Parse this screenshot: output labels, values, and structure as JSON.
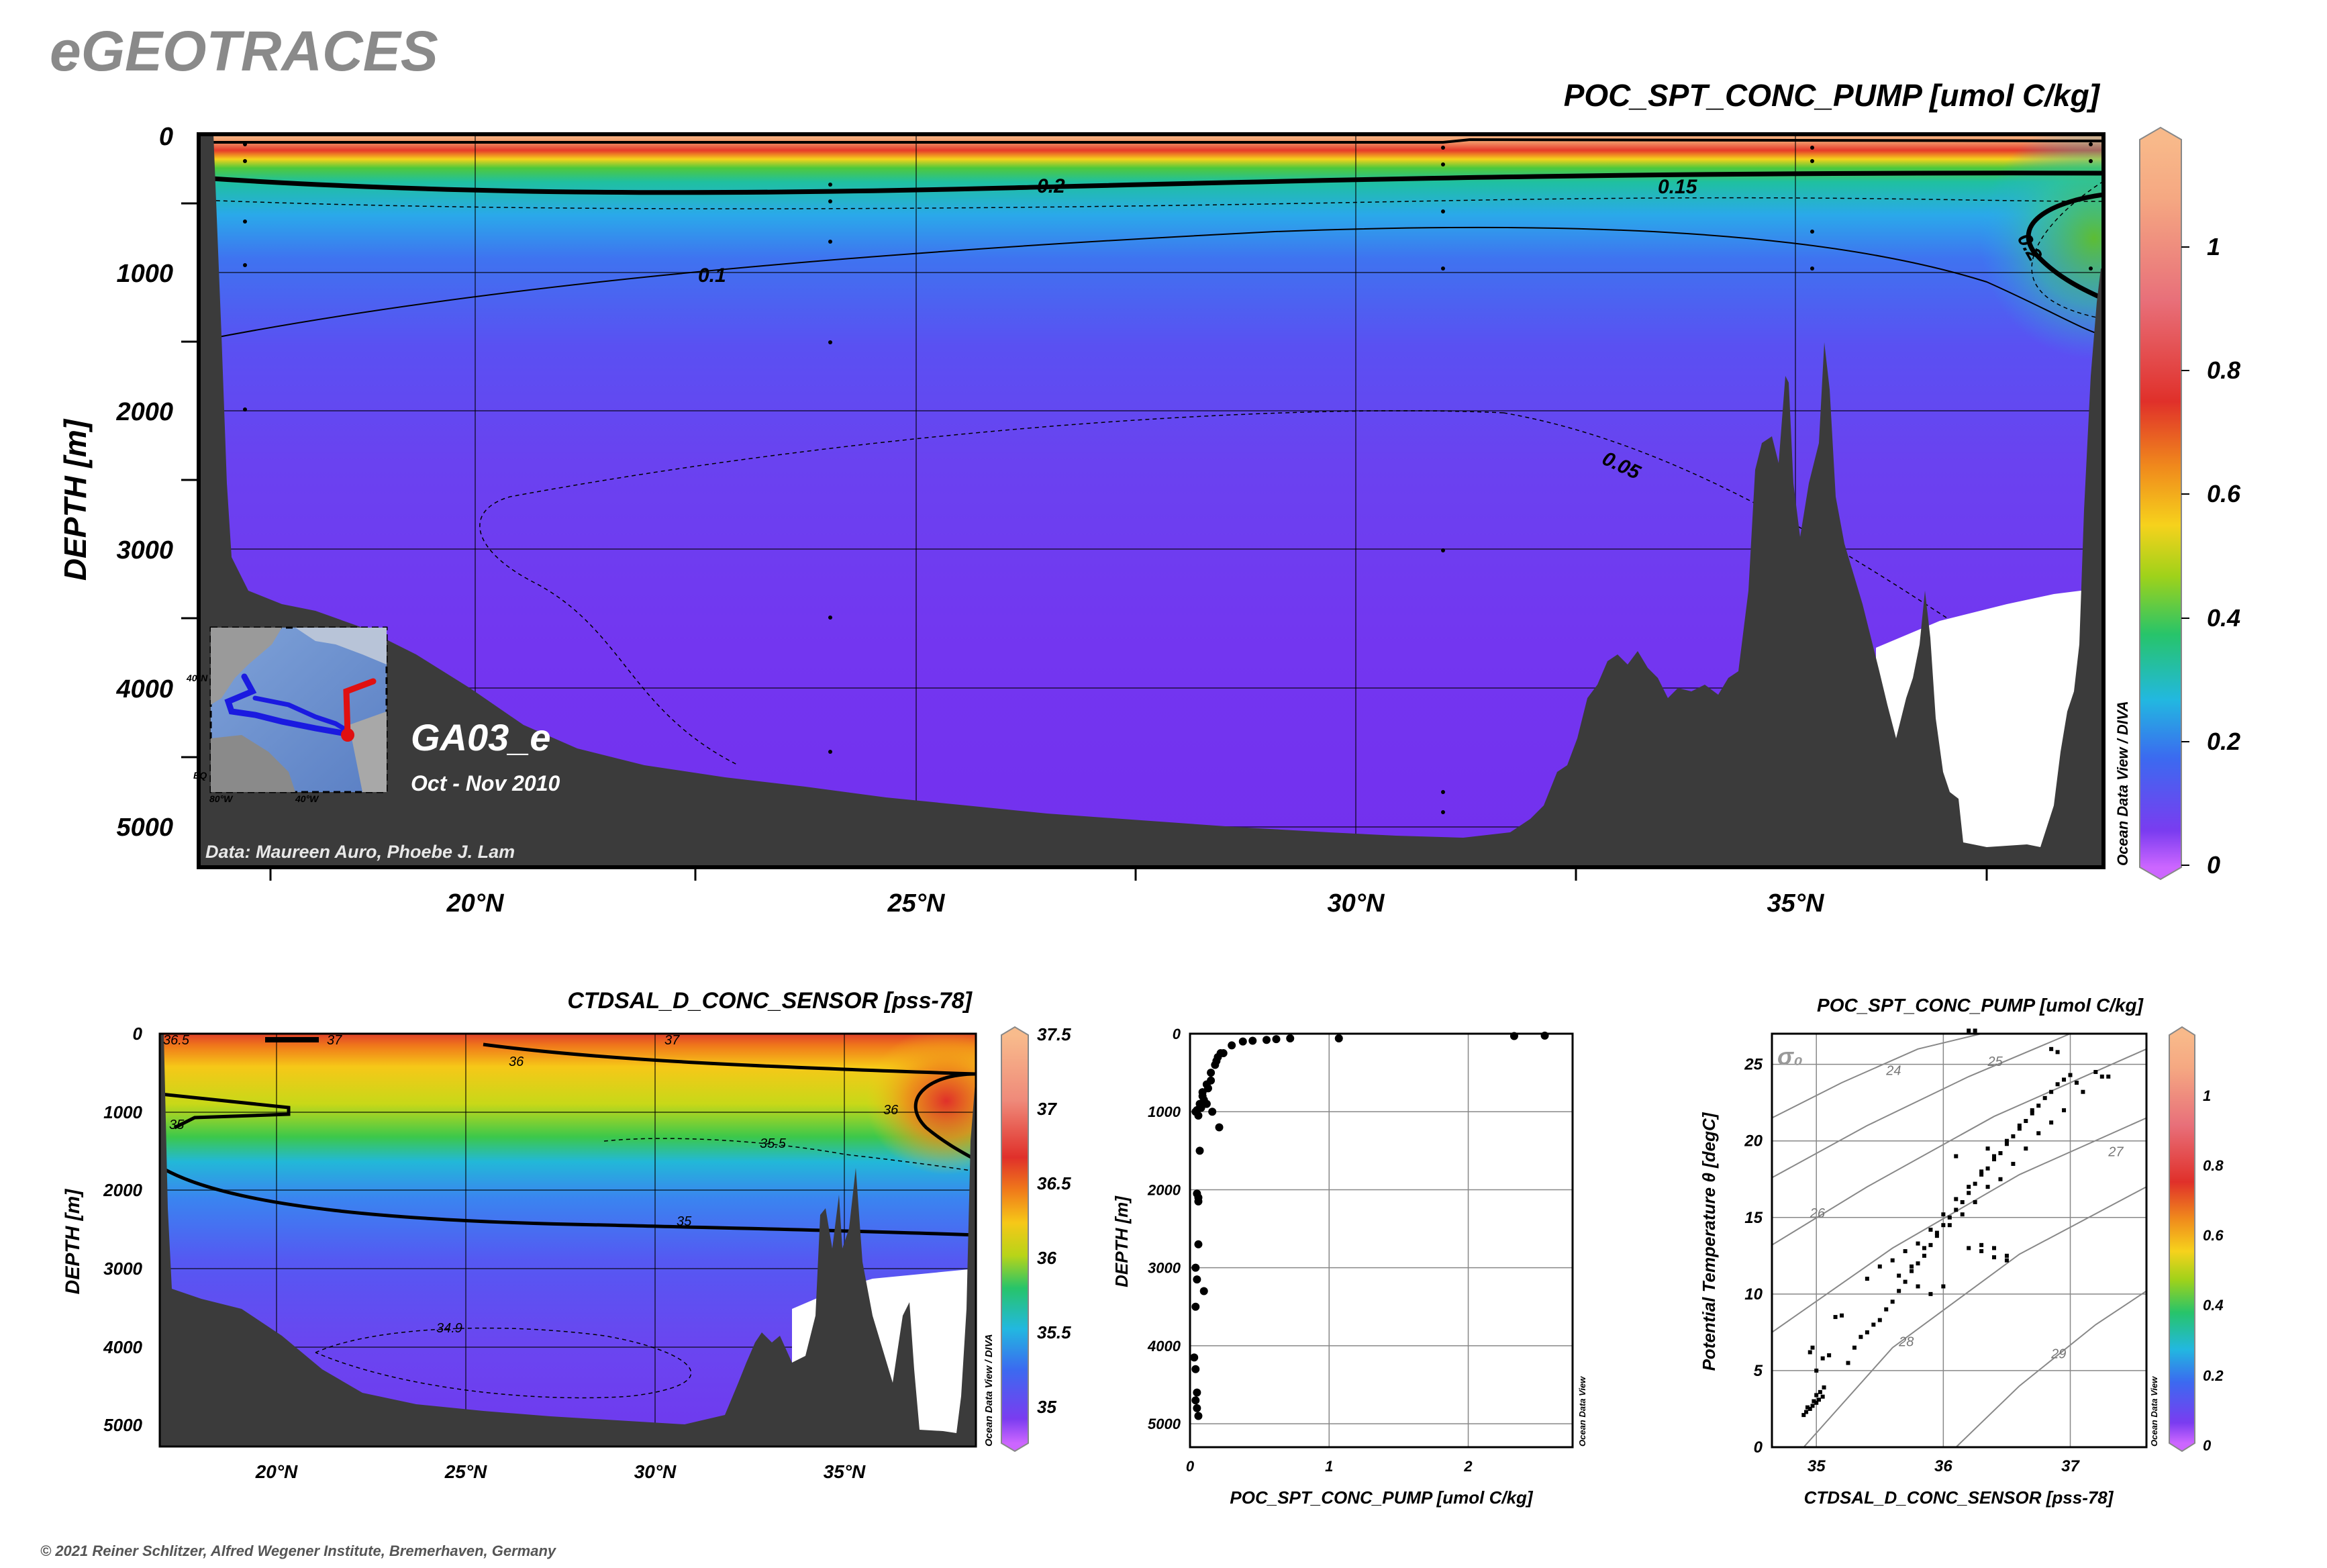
{
  "brand": "eGEOTRACES",
  "copyright": "© 2021 Reiner Schlitzer, Alfred Wegener Institute, Bremerhaven, Germany",
  "watermark": "Ocean Data View / DIVA",
  "watermark_small": "Ocean Data View",
  "main_section": {
    "title": "POC_SPT_CONC_PUMP [umol C/kg]",
    "y_label": "DEPTH [m]",
    "cruise": "GA03_e",
    "period": "Oct - Nov 2010",
    "credit": "Data: Maureen Auro, Phoebe J. Lam",
    "x_ticks": [
      "20°N",
      "25°N",
      "30°N",
      "35°N"
    ],
    "y_ticks": [
      "0",
      "1000",
      "2000",
      "3000",
      "4000",
      "5000"
    ],
    "colorbar_ticks": [
      "1",
      "0.8",
      "0.6",
      "0.4",
      "0.2",
      "0"
    ],
    "contour_labels": [
      "0.2",
      "0.15",
      "0.1",
      "0.05",
      "0.2"
    ],
    "inset_labels": [
      "40°N",
      "EQ",
      "80°W",
      "40°W"
    ]
  },
  "salinity_section": {
    "title": "CTDSAL_D_CONC_SENSOR [pss-78]",
    "y_label": "DEPTH [m]",
    "x_ticks": [
      "20°N",
      "25°N",
      "30°N",
      "35°N"
    ],
    "y_ticks": [
      "0",
      "1000",
      "2000",
      "3000",
      "4000",
      "5000"
    ],
    "colorbar_ticks": [
      "37.5",
      "37",
      "36.5",
      "36",
      "35.5",
      "35"
    ],
    "contour_labels": [
      "36.5",
      "37",
      "37",
      "36",
      "35",
      "35.5",
      "35",
      "36",
      "34.9"
    ]
  },
  "chart_data": [
    {
      "type": "heatmap",
      "title": "POC_SPT_CONC_PUMP [umol C/kg]",
      "xlabel": "",
      "ylabel": "DEPTH [m]",
      "x_range_degN": [
        16.8,
        38.5
      ],
      "y_range_m": [
        0,
        5300
      ],
      "y_reversed": true,
      "colorbar_range": [
        0,
        1.2
      ],
      "contour_levels": [
        0.05,
        0.1,
        0.15,
        0.2
      ]
    },
    {
      "type": "heatmap",
      "title": "CTDSAL_D_CONC_SENSOR [pss-78]",
      "xlabel": "",
      "ylabel": "DEPTH [m]",
      "x_range_degN": [
        16.8,
        38.5
      ],
      "y_range_m": [
        0,
        5300
      ],
      "y_reversed": true,
      "colorbar_range": [
        34.8,
        37.5
      ],
      "contour_levels": [
        34.9,
        35,
        35.5,
        36,
        36.5,
        37
      ]
    },
    {
      "type": "scatter",
      "title": "",
      "xlabel": "POC_SPT_CONC_PUMP [umol C/kg]",
      "ylabel": "DEPTH [m]",
      "x_ticks": [
        "0",
        "1",
        "2"
      ],
      "y_ticks": [
        "0",
        "1000",
        "2000",
        "3000",
        "4000",
        "5000"
      ],
      "xlim": [
        0,
        2.75
      ],
      "ylim": [
        5300,
        0
      ],
      "x": [
        0.05,
        0.07,
        0.09,
        0.12,
        0.15,
        0.18,
        0.2,
        0.24,
        0.3,
        0.38,
        0.45,
        0.55,
        0.62,
        0.72,
        1.07,
        2.33,
        2.55,
        0.04,
        0.06,
        0.08,
        0.1,
        0.13,
        0.15,
        0.19,
        0.22,
        0.16,
        0.12,
        0.09,
        0.07,
        0.21,
        0.06,
        0.05,
        0.06,
        0.04,
        0.05,
        0.04,
        0.03,
        0.04,
        0.05
      ],
      "y": [
        980,
        900,
        800,
        650,
        500,
        400,
        300,
        250,
        150,
        100,
        90,
        80,
        70,
        60,
        60,
        30,
        25,
        1000,
        1050,
        950,
        850,
        700,
        600,
        350,
        250,
        1000,
        900,
        750,
        1500,
        1200,
        2100,
        2050,
        2700,
        3000,
        3150,
        3500,
        4150,
        4300,
        4600
      ],
      "x_extra": [
        0.05,
        0.06,
        0.1,
        0.04,
        0.06
      ],
      "y_extra": [
        4800,
        4900,
        3300,
        4700,
        2150
      ]
    },
    {
      "type": "scatter",
      "title": "POC_SPT_CONC_PUMP [umol C/kg]",
      "xlabel": "CTDSAL_D_CONC_SENSOR [pss-78]",
      "ylabel": "Potential Temperature θ [degC]",
      "x_ticks": [
        "35",
        "36",
        "37"
      ],
      "y_ticks": [
        "0",
        "5",
        "10",
        "15",
        "20",
        "25"
      ],
      "xlim": [
        34.65,
        37.6
      ],
      "ylim": [
        0,
        27
      ],
      "colorbar_ticks": [
        "1",
        "0.8",
        "0.6",
        "0.4",
        "0.2",
        "0"
      ],
      "sigma_label": "σ₀",
      "isopycnal_labels": [
        "24",
        "25",
        "26",
        "27",
        "28",
        "29"
      ],
      "points": [
        [
          34.9,
          2.1
        ],
        [
          34.92,
          2.3
        ],
        [
          34.95,
          2.5
        ],
        [
          34.97,
          2.7
        ],
        [
          35.0,
          2.9
        ],
        [
          35.02,
          3.1
        ],
        [
          35.05,
          3.3
        ],
        [
          34.93,
          2.6
        ],
        [
          34.98,
          3.0
        ],
        [
          35.0,
          3.4
        ],
        [
          35.03,
          3.6
        ],
        [
          35.06,
          3.9
        ],
        [
          34.95,
          6.2
        ],
        [
          34.97,
          6.5
        ],
        [
          35.0,
          5.0
        ],
        [
          35.05,
          5.8
        ],
        [
          35.1,
          6.0
        ],
        [
          35.15,
          8.5
        ],
        [
          35.2,
          8.6
        ],
        [
          35.25,
          5.5
        ],
        [
          35.3,
          6.5
        ],
        [
          35.35,
          7.2
        ],
        [
          35.4,
          7.5
        ],
        [
          35.45,
          8.0
        ],
        [
          35.5,
          8.3
        ],
        [
          35.55,
          9.0
        ],
        [
          35.6,
          9.5
        ],
        [
          35.65,
          10.2
        ],
        [
          35.7,
          10.8
        ],
        [
          35.75,
          11.5
        ],
        [
          35.8,
          12.0
        ],
        [
          35.85,
          12.5
        ],
        [
          35.9,
          13.2
        ],
        [
          35.95,
          13.8
        ],
        [
          36.0,
          14.5
        ],
        [
          36.05,
          15.0
        ],
        [
          36.1,
          15.5
        ],
        [
          36.15,
          16.0
        ],
        [
          36.2,
          16.6
        ],
        [
          36.25,
          17.2
        ],
        [
          36.3,
          17.8
        ],
        [
          36.35,
          18.2
        ],
        [
          36.4,
          18.8
        ],
        [
          36.45,
          19.2
        ],
        [
          36.5,
          19.8
        ],
        [
          36.55,
          20.3
        ],
        [
          36.6,
          20.8
        ],
        [
          36.65,
          21.3
        ],
        [
          36.7,
          21.8
        ],
        [
          36.75,
          22.3
        ],
        [
          36.8,
          22.8
        ],
        [
          36.85,
          23.2
        ],
        [
          36.9,
          23.7
        ],
        [
          36.95,
          24.0
        ],
        [
          37.0,
          24.3
        ],
        [
          37.05,
          23.8
        ],
        [
          37.1,
          23.2
        ],
        [
          37.2,
          24.5
        ],
        [
          37.25,
          24.2
        ],
        [
          37.3,
          24.2
        ],
        [
          35.4,
          11.0
        ],
        [
          35.5,
          11.8
        ],
        [
          35.6,
          12.2
        ],
        [
          35.7,
          12.8
        ],
        [
          35.8,
          13.3
        ],
        [
          35.9,
          14.2
        ],
        [
          36.0,
          15.2
        ],
        [
          36.1,
          16.2
        ],
        [
          36.2,
          17.0
        ],
        [
          36.3,
          18.0
        ],
        [
          36.4,
          19.0
        ],
        [
          36.5,
          20.0
        ],
        [
          36.6,
          21.0
        ],
        [
          36.7,
          22.0
        ],
        [
          35.65,
          11.2
        ],
        [
          35.75,
          11.8
        ],
        [
          35.85,
          13.0
        ],
        [
          35.95,
          14.0
        ],
        [
          36.05,
          14.5
        ],
        [
          36.15,
          15.2
        ],
        [
          36.25,
          16.0
        ],
        [
          36.35,
          17.0
        ],
        [
          36.45,
          17.5
        ],
        [
          36.55,
          18.5
        ],
        [
          36.65,
          19.5
        ],
        [
          36.75,
          20.5
        ],
        [
          36.85,
          21.2
        ],
        [
          36.95,
          22.0
        ],
        [
          36.2,
          13.0
        ],
        [
          36.3,
          13.2
        ],
        [
          36.4,
          13.0
        ],
        [
          36.5,
          12.5
        ],
        [
          36.3,
          12.8
        ],
        [
          36.4,
          12.4
        ],
        [
          36.5,
          12.2
        ],
        [
          35.9,
          10.0
        ],
        [
          36.0,
          10.5
        ],
        [
          35.8,
          10.5
        ],
        [
          36.2,
          27.2
        ],
        [
          36.25,
          27.2
        ],
        [
          36.85,
          26.0
        ],
        [
          36.9,
          25.8
        ],
        [
          36.1,
          19.0
        ],
        [
          36.35,
          19.5
        ]
      ]
    }
  ]
}
